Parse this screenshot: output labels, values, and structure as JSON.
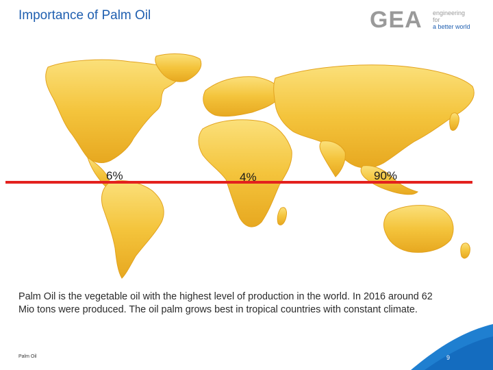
{
  "slide": {
    "title": "Importance of Palm Oil",
    "body": "Palm Oil is the vegetable oil with the highest level of production in the world. In 2016 around 62 Mio tons were produced. The oil palm grows best in tropical countries with constant climate.",
    "footer_label": "Palm Oil",
    "page_number": "9"
  },
  "logo": {
    "wordmark": "GEA",
    "tagline_line1": "engineering for",
    "tagline_line2": "a better world"
  },
  "map": {
    "shares": [
      {
        "region": "Americas",
        "value": "6%"
      },
      {
        "region": "Africa",
        "value": "4%"
      },
      {
        "region": "Asia-Pacific",
        "value": "90%"
      }
    ],
    "equator_color": "#e3211e",
    "land_color": "#f5c842"
  }
}
